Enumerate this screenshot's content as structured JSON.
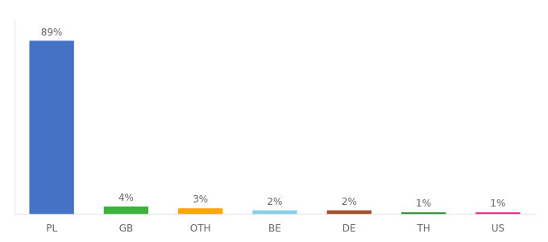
{
  "chart_data": {
    "type": "bar",
    "categories": [
      "PL",
      "GB",
      "OTH",
      "BE",
      "DE",
      "TH",
      "US"
    ],
    "values": [
      89,
      4,
      3,
      2,
      2,
      1,
      1
    ],
    "colors": [
      "#4472C4",
      "#3DB33D",
      "#FFA500",
      "#87CEEB",
      "#A0522D",
      "#2D8B2D",
      "#E91E8C"
    ],
    "ylim": [
      0,
      100
    ],
    "data_labels": true,
    "value_labels": [
      "89%",
      "4%",
      "3%",
      "2%",
      "2%",
      "1%",
      "1%"
    ],
    "tick_labels": "x",
    "grid": false
  }
}
